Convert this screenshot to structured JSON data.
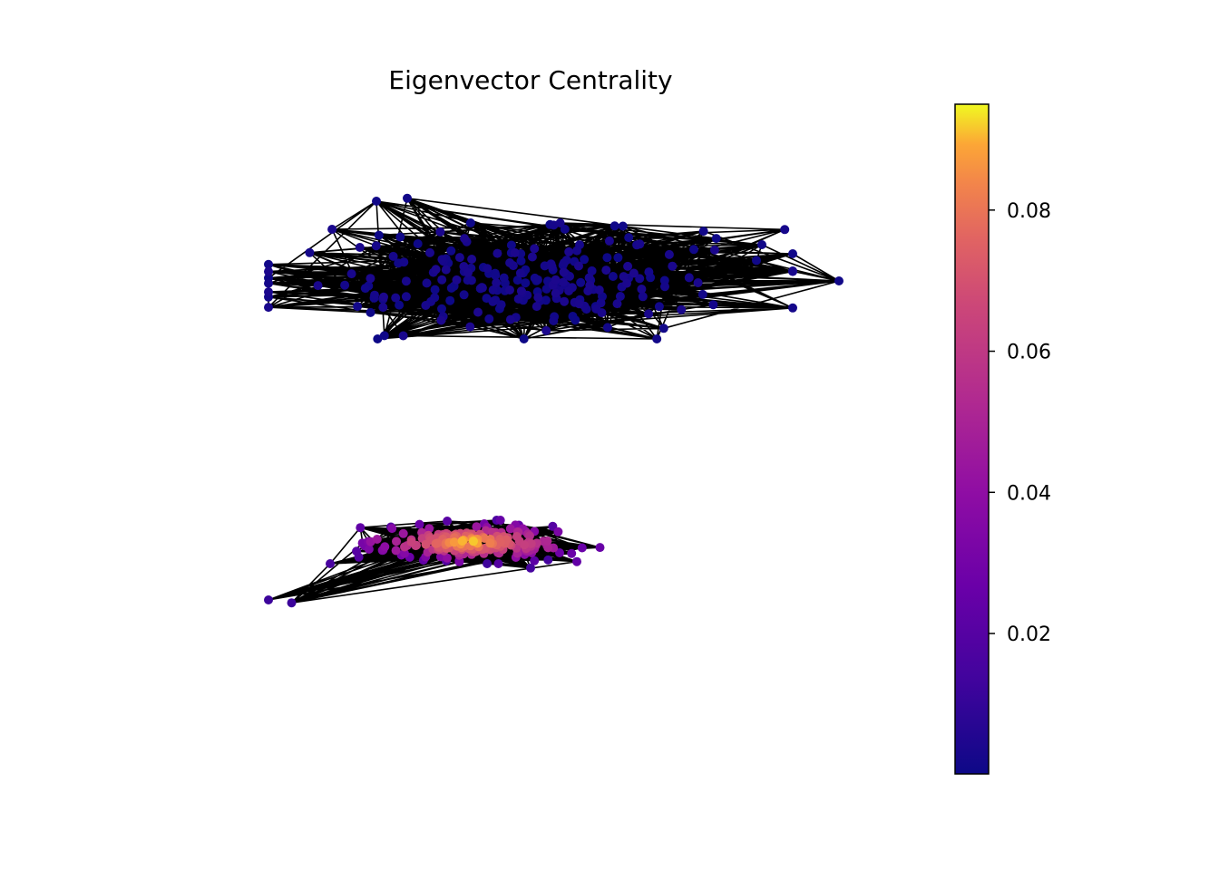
{
  "chart_data": {
    "type": "scatter",
    "subtype": "network-graph",
    "title": "Eigenvector Centrality",
    "xlabel": "",
    "ylabel": "",
    "axes_visible": false,
    "grid": false,
    "edge_color": "#000000",
    "colormap": "plasma",
    "colorbar": {
      "position": "right",
      "range": [
        0.0001,
        0.095
      ],
      "ticks": [
        0.02,
        0.04,
        0.06,
        0.08
      ],
      "tick_labels": [
        "0.02",
        "0.04",
        "0.06",
        "0.08"
      ]
    },
    "clusters": [
      {
        "value_range": [
          0.0001,
          0.004
        ],
        "x_range": [
          -1.6,
          1.8
        ],
        "y_range": [
          0.7,
          1.5
        ],
        "x_center": 0.0,
        "y_center": 1.0,
        "outliers": [
          {
            "x": -1.0,
            "y": 1.55,
            "value": 0.001
          },
          {
            "x": -0.8,
            "y": 1.57,
            "value": 0.001
          },
          {
            "x": 2.0,
            "y": 1.0,
            "value": 0.001
          },
          {
            "x": 1.5,
            "y": 1.25,
            "value": 0.001
          }
        ]
      },
      {
        "value_range": [
          0.01,
          0.095
        ],
        "x_range": [
          -1.3,
          0.4
        ],
        "y_range": [
          -0.95,
          -0.65
        ],
        "x_center": -0.4,
        "y_center": -0.8,
        "outliers": [
          {
            "x": -1.7,
            "y": -1.2,
            "value": 0.012
          },
          {
            "x": -1.55,
            "y": -1.22,
            "value": 0.012
          },
          {
            "x": -1.3,
            "y": -0.95,
            "value": 0.016
          },
          {
            "x": 0.0,
            "y": -0.98,
            "value": 0.015
          }
        ]
      }
    ]
  }
}
